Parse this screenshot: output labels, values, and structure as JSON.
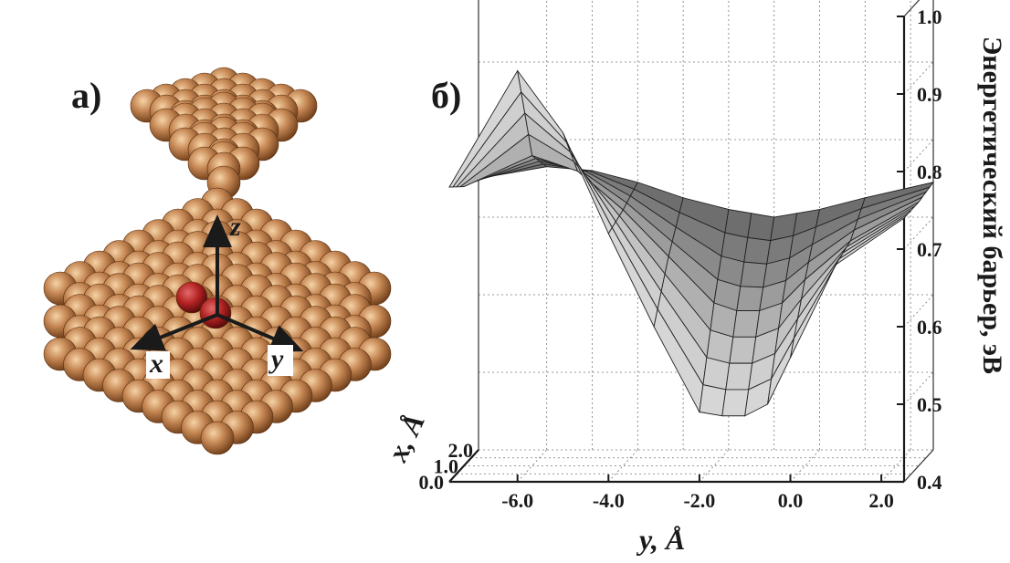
{
  "panel_a": {
    "label": "а)",
    "axes": {
      "x": "x",
      "y": "y",
      "z": "z"
    },
    "colors": {
      "copper": "#c58754",
      "copper_dark": "#6b3a16",
      "adatom": "#b32222",
      "adatom_dark": "#4a0808"
    }
  },
  "panel_b": {
    "label": "б)",
    "chart_data": {
      "type": "surface",
      "xlabel": "y, Å",
      "ylabel": "x, Å",
      "zlabel": "Энергетический барьер, эВ",
      "y_ticks": [
        "-6.0",
        "-4.0",
        "-2.0",
        "0.0",
        "2.0"
      ],
      "x_ticks": [
        "0.0",
        "1.0",
        "2.0"
      ],
      "z_ticks": [
        "0.4",
        "0.5",
        "0.6",
        "0.7",
        "0.8",
        "0.9",
        "1.0"
      ],
      "ylim": [
        -7.5,
        2.5
      ],
      "xlim": [
        0.0,
        2.0
      ],
      "zlim": [
        0.4,
        1.0
      ],
      "grid": true,
      "series": [
        {
          "x_value": 0.0,
          "y": [
            -7.5,
            -6.0,
            -5.0,
            -4.0,
            -3.0,
            -2.0,
            -1.5,
            -1.0,
            -0.5,
            0.0,
            1.0,
            2.5
          ],
          "z": [
            0.78,
            0.93,
            0.85,
            0.72,
            0.6,
            0.49,
            0.485,
            0.485,
            0.5,
            0.56,
            0.68,
            0.74
          ]
        },
        {
          "x_value": 1.0,
          "y": [
            -7.5,
            -6.0,
            -5.0,
            -4.0,
            -3.0,
            -2.0,
            -1.5,
            -1.0,
            -0.5,
            0.0,
            1.0,
            2.5
          ],
          "z": [
            0.76,
            0.8,
            0.78,
            0.73,
            0.67,
            0.61,
            0.6,
            0.6,
            0.61,
            0.64,
            0.69,
            0.74
          ]
        },
        {
          "x_value": 2.0,
          "y": [
            -7.5,
            -6.0,
            -5.0,
            -4.0,
            -3.0,
            -2.0,
            -1.5,
            -1.0,
            -0.5,
            0.0,
            1.0,
            2.5
          ],
          "z": [
            0.75,
            0.765,
            0.76,
            0.745,
            0.725,
            0.71,
            0.705,
            0.7,
            0.705,
            0.71,
            0.725,
            0.745
          ]
        }
      ]
    }
  }
}
